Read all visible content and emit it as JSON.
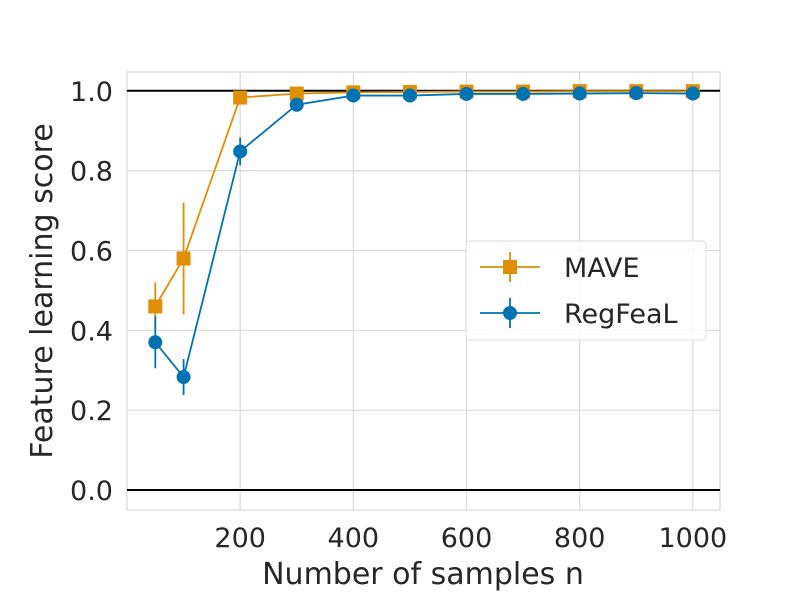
{
  "chart_data": {
    "type": "line",
    "title": "",
    "xlabel": "Number of samples n",
    "ylabel": "Feature learning score",
    "xlim": [
      0,
      1048
    ],
    "ylim": [
      -0.05,
      1.047
    ],
    "xticks": [
      200,
      400,
      600,
      800,
      1000
    ],
    "xtick_labels": [
      "200",
      "400",
      "600",
      "800",
      "1000"
    ],
    "yticks": [
      0.0,
      0.2,
      0.4,
      0.6,
      0.8,
      1.0
    ],
    "ytick_labels": [
      "0.0",
      "0.2",
      "0.4",
      "0.6",
      "0.8",
      "1.0"
    ],
    "hlines": [
      0.0,
      1.0
    ],
    "grid": true,
    "legend_position": "center-right",
    "x": [
      50,
      100,
      200,
      300,
      400,
      500,
      600,
      700,
      800,
      900,
      1000
    ],
    "series": [
      {
        "name": "MAVE",
        "color": "#de8f05",
        "marker": "square",
        "values": [
          0.46,
          0.58,
          0.983,
          0.993,
          0.996,
          0.997,
          0.998,
          0.998,
          0.999,
          0.999,
          0.999
        ],
        "errors": [
          0.06,
          0.14,
          0.005,
          0.003,
          0.002,
          0.002,
          0.001,
          0.001,
          0.001,
          0.001,
          0.001
        ]
      },
      {
        "name": "RegFeaL",
        "color": "#0173b2",
        "marker": "circle",
        "values": [
          0.37,
          0.283,
          0.848,
          0.965,
          0.988,
          0.988,
          0.992,
          0.992,
          0.993,
          0.994,
          0.993
        ],
        "errors": [
          0.065,
          0.045,
          0.035,
          0.008,
          0.005,
          0.005,
          0.004,
          0.004,
          0.003,
          0.003,
          0.003
        ]
      }
    ]
  }
}
